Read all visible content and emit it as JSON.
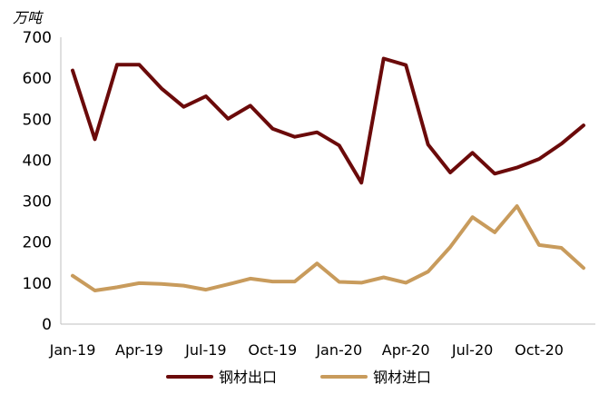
{
  "chart_data": {
    "type": "line",
    "unit_label": "万吨",
    "x": [
      "Jan-19",
      "Feb-19",
      "Mar-19",
      "Apr-19",
      "May-19",
      "Jun-19",
      "Jul-19",
      "Aug-19",
      "Sep-19",
      "Oct-19",
      "Nov-19",
      "Dec-19",
      "Jan-20",
      "Feb-20",
      "Mar-20",
      "Apr-20",
      "May-20",
      "Jun-20",
      "Jul-20",
      "Aug-20",
      "Sep-20",
      "Oct-20",
      "Nov-20",
      "Dec-20"
    ],
    "x_tick_labels": [
      "Jan-19",
      "Apr-19",
      "Jul-19",
      "Oct-19",
      "Jan-20",
      "Apr-20",
      "Jul-20",
      "Oct-20"
    ],
    "ylim": [
      0,
      700
    ],
    "y_ticks": [
      0,
      100,
      200,
      300,
      400,
      500,
      600,
      700
    ],
    "grid": false,
    "legend_position": "bottom",
    "series": [
      {
        "name": "钢材出口",
        "color": "#6b0a0a",
        "values": [
          619,
          451,
          633,
          633,
          575,
          530,
          556,
          501,
          533,
          477,
          457,
          468,
          436,
          345,
          648,
          632,
          438,
          370,
          418,
          367,
          382,
          403,
          440,
          485
        ]
      },
      {
        "name": "钢材进口",
        "color": "#c89b5c",
        "values": [
          118,
          82,
          90,
          100,
          98,
          94,
          84,
          97,
          111,
          104,
          104,
          148,
          103,
          101,
          114,
          101,
          128,
          188,
          261,
          224,
          288,
          193,
          186,
          137
        ]
      }
    ]
  }
}
